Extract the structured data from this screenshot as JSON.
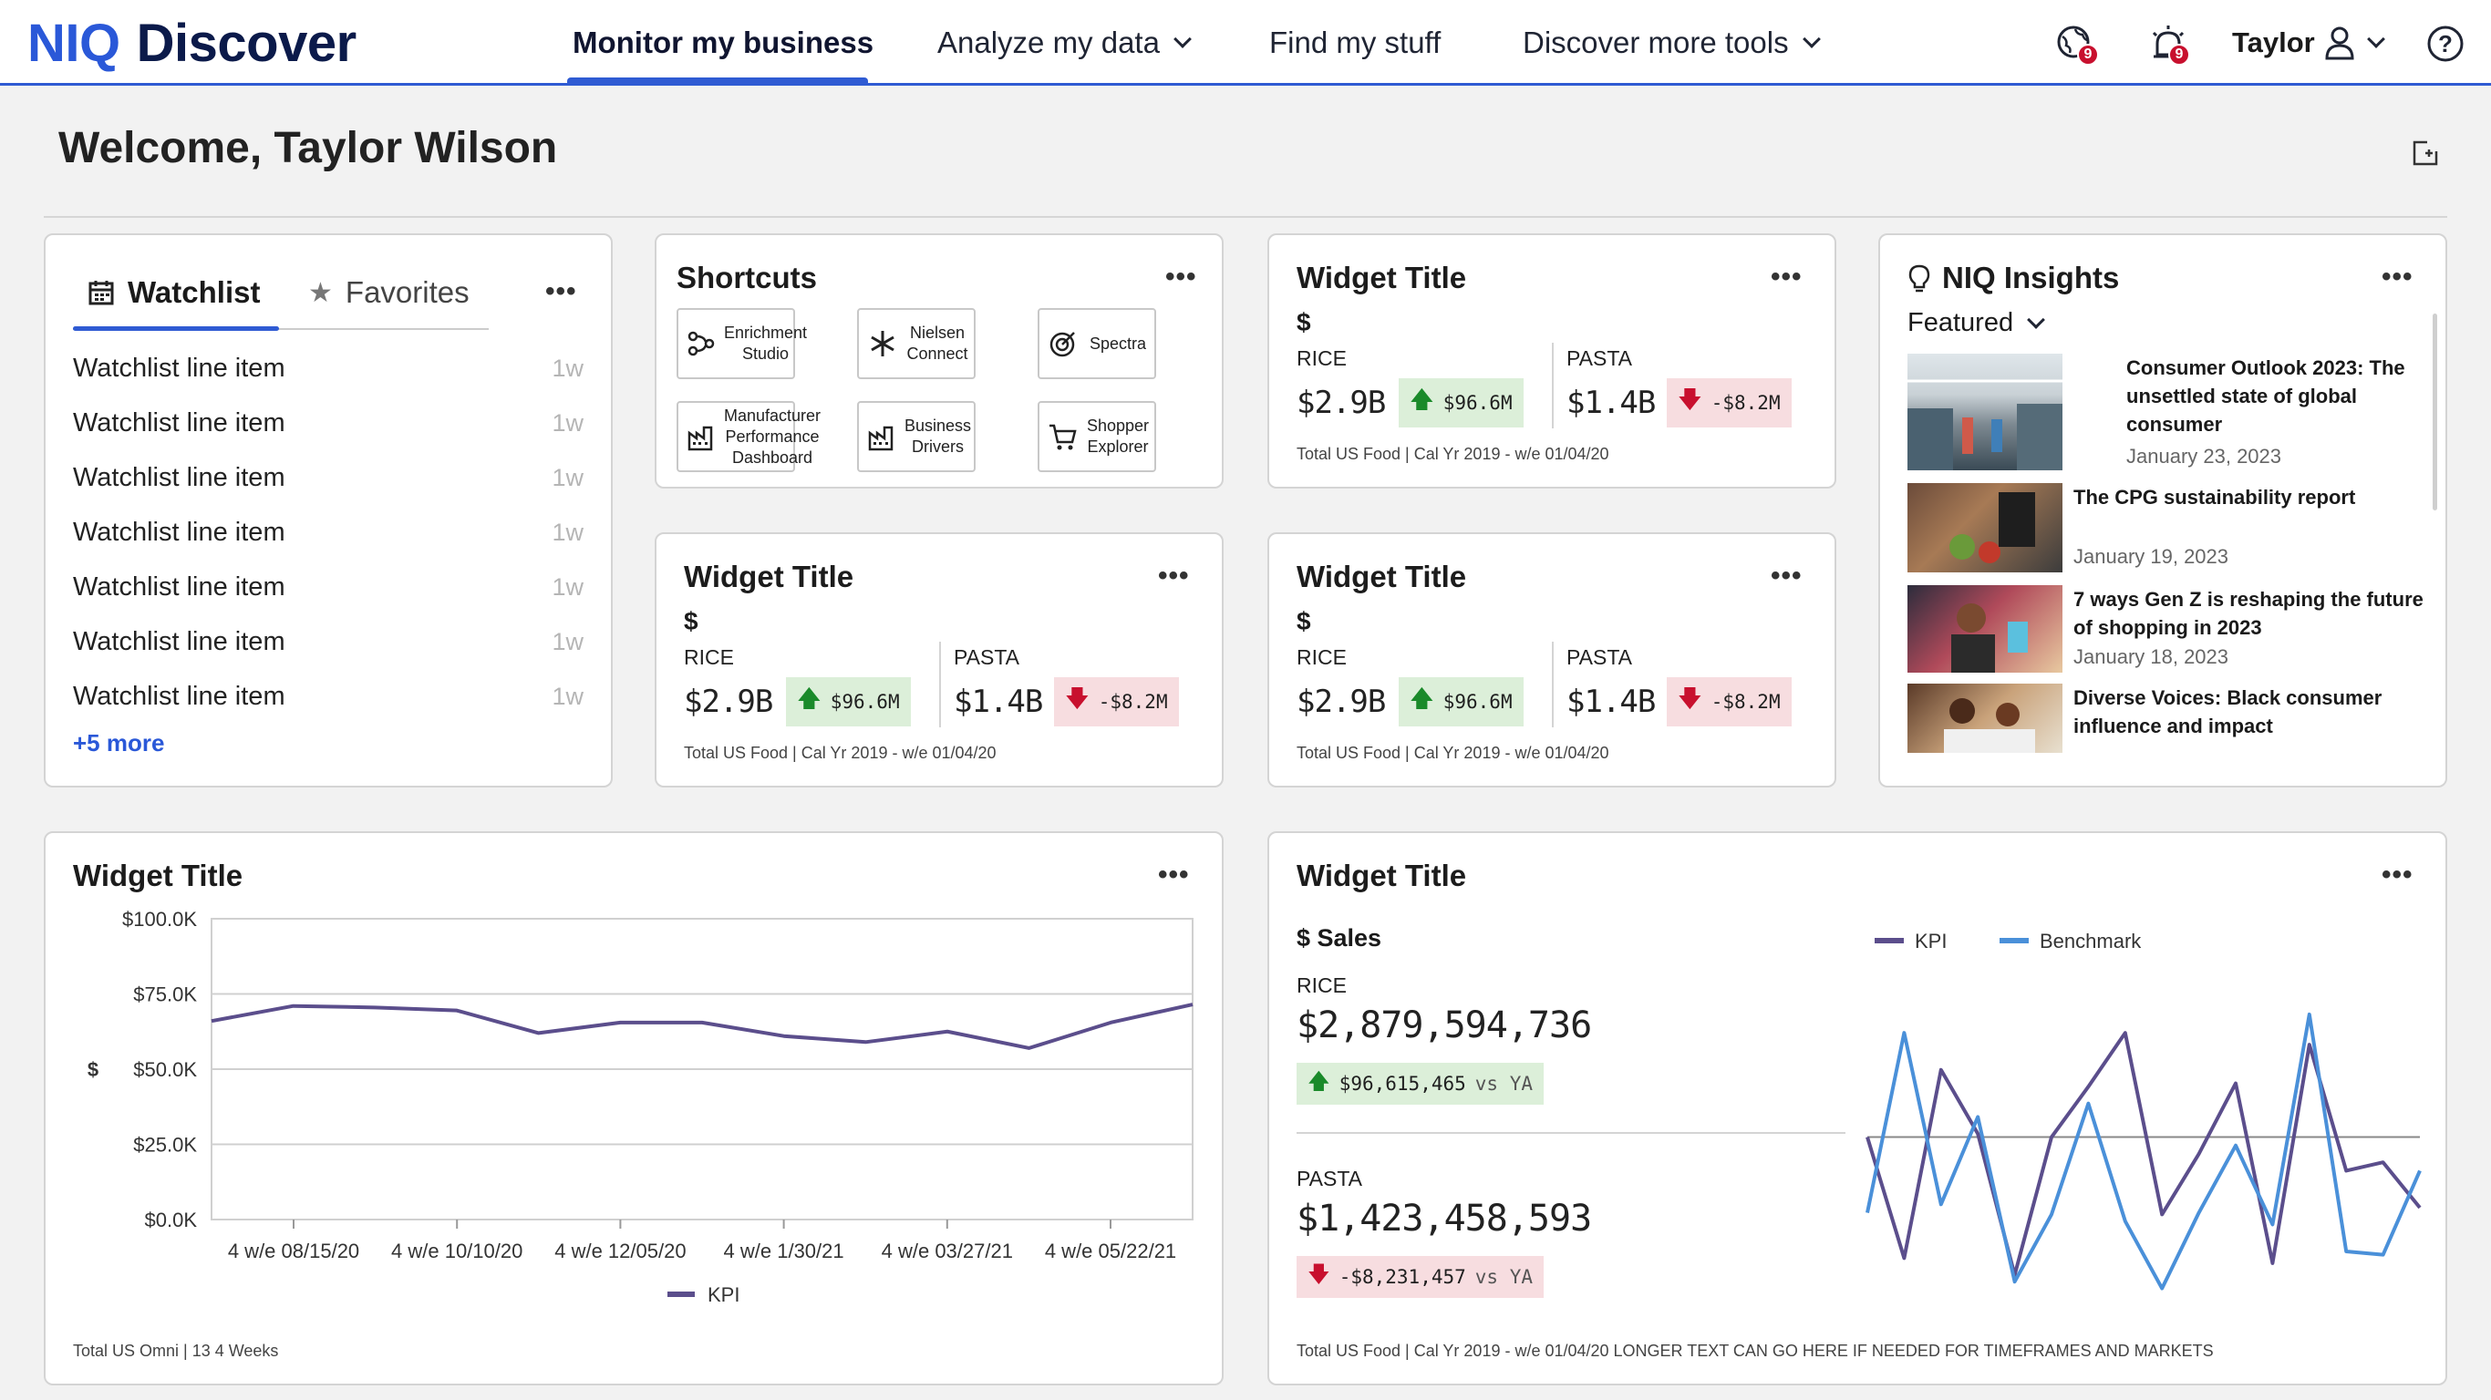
{
  "header": {
    "logo_a": "NIQ",
    "logo_b": "Discover",
    "nav": [
      {
        "label": "Monitor my business"
      },
      {
        "label": "Analyze my data"
      },
      {
        "label": "Find my stuff"
      },
      {
        "label": "Discover more tools"
      }
    ],
    "notif_count_a": "9",
    "notif_count_b": "9",
    "user_name": "Taylor",
    "accent": "#2f5bd3"
  },
  "welcome": "Welcome, Taylor Wilson",
  "watchlist": {
    "tab_watchlist": "Watchlist",
    "tab_favorites": "Favorites",
    "items": [
      {
        "label": "Watchlist line item",
        "age": "1w"
      },
      {
        "label": "Watchlist line item",
        "age": "1w"
      },
      {
        "label": "Watchlist line item",
        "age": "1w"
      },
      {
        "label": "Watchlist line item",
        "age": "1w"
      },
      {
        "label": "Watchlist line item",
        "age": "1w"
      },
      {
        "label": "Watchlist line item",
        "age": "1w"
      },
      {
        "label": "Watchlist line item",
        "age": "1w"
      }
    ],
    "more_link": "+5 more"
  },
  "shortcuts": {
    "title": "Shortcuts",
    "items": [
      {
        "label": "Enrichment Studio",
        "icon": "enrichment-icon"
      },
      {
        "label": "Nielsen Connect",
        "icon": "asterisk-icon"
      },
      {
        "label": "Spectra",
        "icon": "target-icon"
      },
      {
        "label": "Manufacturer Performance Dashboard",
        "icon": "factory-icon"
      },
      {
        "label": "Business Drivers",
        "icon": "factory-icon"
      },
      {
        "label": "Shopper Explorer",
        "icon": "cart-icon"
      }
    ]
  },
  "kpi_widgets": [
    {
      "title": "Widget Title",
      "symbol": "$",
      "left": {
        "label": "RICE",
        "value": "$2.9B",
        "change": "$96.6M"
      },
      "right": {
        "label": "PASTA",
        "value": "$1.4B",
        "change": "-$8.2M"
      },
      "footnote": "Total US Food | Cal Yr 2019 - w/e 01/04/20"
    },
    {
      "title": "Widget Title",
      "symbol": "$",
      "left": {
        "label": "RICE",
        "value": "$2.9B",
        "change": "$96.6M"
      },
      "right": {
        "label": "PASTA",
        "value": "$1.4B",
        "change": "-$8.2M"
      },
      "footnote": "Total US Food | Cal Yr 2019 - w/e 01/04/20"
    },
    {
      "title": "Widget Title",
      "symbol": "$",
      "left": {
        "label": "RICE",
        "value": "$2.9B",
        "change": "$96.6M"
      },
      "right": {
        "label": "PASTA",
        "value": "$1.4B",
        "change": "-$8.2M"
      },
      "footnote": "Total US Food | Cal Yr 2019 - w/e 01/04/20"
    }
  ],
  "insights": {
    "title": "NIQ Insights",
    "filter": "Featured",
    "items": [
      {
        "title": "Consumer Outlook 2023: The unsettled state of global consumer",
        "date": "January 23, 2023"
      },
      {
        "title": "The CPG sustainability report",
        "date": "January 19, 2023"
      },
      {
        "title": "7 ways Gen Z is reshaping the future of shopping in 2023",
        "date": "January 18, 2023"
      },
      {
        "title": "Diverse Voices: Black consumer influence and impact",
        "date": ""
      }
    ]
  },
  "line_widget": {
    "title": "Widget Title",
    "footnote": "Total US Omni | 13 4 Weeks"
  },
  "sales_widget": {
    "title": "Widget Title",
    "subtitle": "$ Sales",
    "rice": {
      "label": "RICE",
      "value": "$2,879,594,736",
      "change": "$96,615,465",
      "vs": "vs YA"
    },
    "pasta": {
      "label": "PASTA",
      "value": "$1,423,458,593",
      "change": "-$8,231,457",
      "vs": "vs YA"
    },
    "footnote": "Total US Food | Cal Yr 2019 - w/e 01/04/20 LONGER TEXT CAN GO HERE IF NEEDED FOR TIMEFRAMES AND MARKETS"
  },
  "chart_data": [
    {
      "type": "line",
      "title": "",
      "xlabel": "",
      "ylabel": "$",
      "ylim": [
        0,
        100000
      ],
      "yticks": [
        "$100.0K",
        "$75.0K",
        "$50.0K",
        "$25.0K",
        "$0.0K"
      ],
      "xticks": [
        "4 w/e 08/15/20",
        "4 w/e 10/10/20",
        "4 w/e 12/05/20",
        "4 w/e 1/30/21",
        "4 w/e 03/27/21",
        "4 w/e 05/22/21"
      ],
      "series": [
        {
          "name": "KPI",
          "color": "#5b4e8c",
          "values": [
            66000,
            71000,
            70500,
            69500,
            62000,
            65500,
            65500,
            61000,
            59000,
            62500,
            57000,
            65500,
            71500
          ]
        }
      ],
      "legend": "bottom-center",
      "grid": true
    },
    {
      "type": "line",
      "title": "",
      "series": [
        {
          "name": "KPI",
          "color": "#5b4e8c",
          "values": [
            0,
            -72,
            40,
            2,
            -82,
            0,
            30,
            62,
            -46,
            -10,
            32,
            -75,
            55,
            -20,
            -15,
            -42
          ]
        },
        {
          "name": "Benchmark",
          "color": "#4a90d9",
          "values": [
            -45,
            62,
            -40,
            12,
            -86,
            -46,
            20,
            -50,
            -90,
            -45,
            -5,
            -52,
            73,
            -68,
            -70,
            -20
          ]
        }
      ],
      "ylim": [
        -100,
        80
      ],
      "baseline": 0,
      "legend": "top-left",
      "grid": false
    }
  ]
}
